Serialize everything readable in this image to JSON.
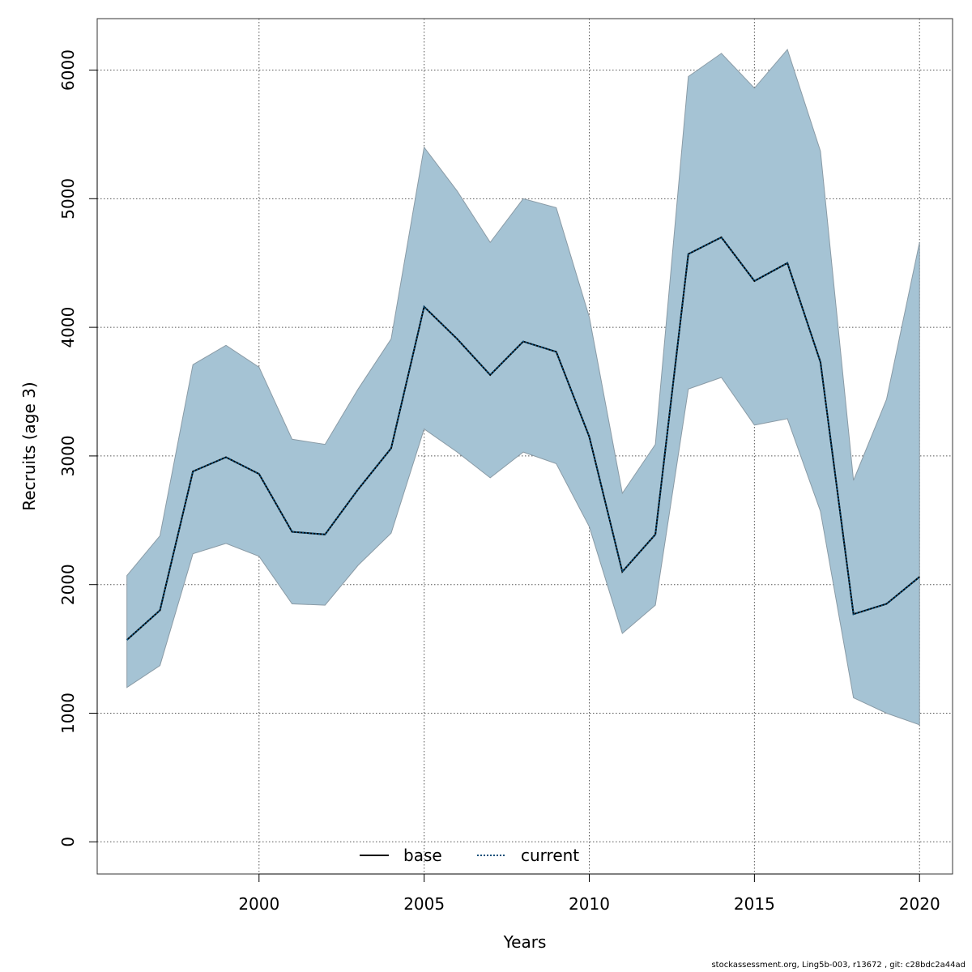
{
  "chart_data": {
    "type": "line",
    "title": "",
    "xlabel": "Years",
    "ylabel": "Recruits (age 3)",
    "xlim": [
      1995.1,
      2021.0
    ],
    "ylim": [
      -250,
      6400
    ],
    "x_ticks": [
      2000,
      2005,
      2010,
      2015,
      2020
    ],
    "y_ticks": [
      0,
      1000,
      2000,
      3000,
      4000,
      5000,
      6000
    ],
    "grid": true,
    "legend_position": "bottom-center",
    "x": [
      1996,
      1997,
      1998,
      1999,
      2000,
      2001,
      2002,
      2003,
      2004,
      2005,
      2006,
      2007,
      2008,
      2009,
      2010,
      2011,
      2012,
      2013,
      2014,
      2015,
      2016,
      2017,
      2018,
      2019,
      2020
    ],
    "band": {
      "color": "#a5c3d4",
      "upper": [
        2070,
        2380,
        3710,
        3860,
        3690,
        3130,
        3090,
        3520,
        3910,
        5400,
        5060,
        4660,
        5000,
        4930,
        4080,
        2710,
        3090,
        5950,
        6130,
        5860,
        6160,
        5370,
        2810,
        3440,
        4660
      ],
      "lower": [
        1200,
        1370,
        2240,
        2320,
        2220,
        1850,
        1840,
        2150,
        2400,
        3210,
        3030,
        2830,
        3030,
        2940,
        2450,
        1620,
        1840,
        3520,
        3610,
        3240,
        3290,
        2570,
        1120,
        1000,
        910
      ]
    },
    "series": [
      {
        "name": "base",
        "color": "#000000",
        "style": "solid",
        "values": [
          1570,
          1800,
          2880,
          2990,
          2860,
          2410,
          2390,
          2740,
          3060,
          4160,
          3910,
          3630,
          3890,
          3810,
          3150,
          2100,
          2390,
          4570,
          4700,
          4360,
          4500,
          3730,
          1770,
          1850,
          2060
        ]
      },
      {
        "name": "current",
        "color": "#0b4f7a",
        "style": "dotted",
        "values": [
          1570,
          1800,
          2880,
          2990,
          2860,
          2410,
          2390,
          2740,
          3060,
          4160,
          3910,
          3630,
          3890,
          3810,
          3150,
          2100,
          2390,
          4570,
          4700,
          4360,
          4500,
          3730,
          1770,
          1850,
          2060
        ]
      }
    ]
  },
  "footer": "stockassessment.org, Ling5b-003, r13672 , git: c28bdc2a44ad"
}
